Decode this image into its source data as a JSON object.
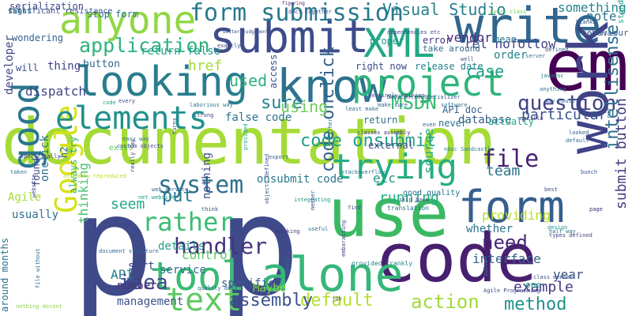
{
  "words": [
    {
      "text": "documentation",
      "color": "#a5db36"
    },
    {
      "text": "p",
      "color": "#3e4a89"
    },
    {
      "text": "p",
      "color": "#3e4a89"
    },
    {
      "text": "use",
      "color": "#3ab963"
    },
    {
      "text": "code",
      "color": "#481f70"
    },
    {
      "text": "alone",
      "color": "#35b779"
    },
    {
      "text": "em",
      "color": "#440154"
    },
    {
      "text": "know",
      "color": "#2c728e"
    },
    {
      "text": "looking",
      "color": "#287d8e"
    },
    {
      "text": "write",
      "color": "#31668e"
    },
    {
      "text": "submit",
      "color": "#3e4c8a"
    },
    {
      "text": "XML",
      "color": "#22a884"
    },
    {
      "text": "project",
      "color": "#2fb47c"
    },
    {
      "text": "anyone",
      "color": "#90d743"
    },
    {
      "text": "good",
      "color": "#2a768e"
    },
    {
      "text": "Google",
      "color": "#d5e21a"
    },
    {
      "text": "work",
      "color": "#404387"
    },
    {
      "text": "form",
      "color": "#355f8d"
    },
    {
      "text": "trying",
      "color": "#26ad81"
    },
    {
      "text": "elements",
      "color": "#21918c"
    },
    {
      "text": "tool",
      "color": "#3bbb75"
    },
    {
      "text": "text",
      "color": "#5ec962"
    },
    {
      "text": "form submission",
      "color": "#2a788e"
    },
    {
      "text": "application",
      "color": "#2db27d"
    },
    {
      "text": "question",
      "color": "#424186"
    },
    {
      "text": "code onclick",
      "color": "#34618d"
    },
    {
      "text": "code onsubmit",
      "color": "#1f9e89"
    },
    {
      "text": "default",
      "color": "#b5de2b"
    },
    {
      "text": "action",
      "color": "#a0da39"
    },
    {
      "text": "method",
      "color": "#21908d"
    },
    {
      "text": "file",
      "color": "#482173"
    },
    {
      "text": "intellisense",
      "color": "#2e6f8e"
    },
    {
      "text": "submit button",
      "color": "#443983"
    },
    {
      "text": "system",
      "color": "#2d708e"
    },
    {
      "text": "rather",
      "color": "#3dbc74"
    },
    {
      "text": "handler",
      "color": "#46337e"
    },
    {
      "text": "Visual Studio",
      "color": "#277f8e"
    },
    {
      "text": "MSDN",
      "color": "#3aba76"
    },
    {
      "text": "case",
      "color": "#1fa187"
    },
    {
      "text": "assembly",
      "color": "#3b528b"
    },
    {
      "text": "idea",
      "color": "#3f4788"
    },
    {
      "text": "sure",
      "color": "#26828e"
    },
    {
      "text": "need",
      "color": "#482878"
    },
    {
      "text": "particular",
      "color": "#3a548c"
    },
    {
      "text": "example",
      "color": "#453781"
    },
    {
      "text": "team",
      "color": "#2c738e"
    },
    {
      "text": "year",
      "color": "#3b518b"
    },
    {
      "text": "running",
      "color": "#26ad81"
    },
    {
      "text": "used",
      "color": "#2db27d"
    },
    {
      "text": "using",
      "color": "#6ccd5a"
    },
    {
      "text": "etc",
      "color": "#1f958b"
    },
    {
      "text": "seem",
      "color": "#22a785"
    },
    {
      "text": "put",
      "color": "#2a788e"
    },
    {
      "text": "control",
      "color": "#5ac864"
    },
    {
      "text": "thinking",
      "color": "#48c16e"
    },
    {
      "text": "interface",
      "color": "#33628d"
    },
    {
      "text": "providing",
      "color": "#b8de29"
    },
    {
      "text": "database",
      "color": "#355e8d"
    },
    {
      "text": "dispatch",
      "color": "#404688"
    },
    {
      "text": "something",
      "color": "#25848e"
    },
    {
      "text": "vendor",
      "color": "#472d7b"
    },
    {
      "text": "href",
      "color": "#a2da37"
    },
    {
      "text": "return false",
      "color": "#1e9c89"
    },
    {
      "text": "rel nofollow",
      "color": "#414487"
    },
    {
      "text": "note",
      "color": "#2c728e"
    },
    {
      "text": "source",
      "color": "#26ad81"
    },
    {
      "text": "whether",
      "color": "#2b748e"
    },
    {
      "text": "management",
      "color": "#3b528b"
    },
    {
      "text": "details",
      "color": "#1f9f88"
    },
    {
      "text": "sort",
      "color": "#404588"
    },
    {
      "text": "API",
      "color": "#277e8e"
    },
    {
      "text": "number",
      "color": "#46327e"
    },
    {
      "text": "service",
      "color": "#2f6c8e"
    },
    {
      "text": "Maybe",
      "color": "#8bd646"
    },
    {
      "text": "specific",
      "color": "#365c8d"
    },
    {
      "text": "Agile",
      "color": "#a8db34"
    },
    {
      "text": "usually",
      "color": "#2e6f8e"
    },
    {
      "text": "thing",
      "color": "#414487"
    },
    {
      "text": "button",
      "color": "#31688e"
    },
    {
      "text": "will",
      "color": "#3b528b"
    },
    {
      "text": "developer",
      "color": "#404588"
    },
    {
      "text": "wondering",
      "color": "#33638d"
    },
    {
      "text": "stop form",
      "color": "#2a788e"
    },
    {
      "text": "serialization",
      "color": "#3f4889"
    },
    {
      "text": "take around",
      "color": "#2f6b8e"
    },
    {
      "text": "mean",
      "color": "#2b758e"
    },
    {
      "text": "error",
      "color": "#46337e"
    },
    {
      "text": "proper",
      "color": "#1f968b"
    },
    {
      "text": "order",
      "color": "#26828e"
    },
    {
      "text": "behaviour",
      "color": "#34608d"
    },
    {
      "text": "standard",
      "color": "#1f9e89"
    },
    {
      "text": "right now",
      "color": "#3e4989"
    },
    {
      "text": "release date",
      "color": "#26828e"
    },
    {
      "text": "API doc",
      "color": "#33628d"
    },
    {
      "text": "actually",
      "color": "#22a884"
    },
    {
      "text": "access",
      "color": "#3a538b"
    },
    {
      "text": "return",
      "color": "#2c728e"
    },
    {
      "text": "false code",
      "color": "#2c718e"
    },
    {
      "text": "onsubmit code",
      "color": "#2a788e"
    },
    {
      "text": "nothing",
      "color": "#3e4a89"
    },
    {
      "text": "external",
      "color": "#3f4788"
    },
    {
      "text": "never",
      "color": "#2a778e"
    },
    {
      "text": "exist",
      "color": "#5ac864"
    },
    {
      "text": "onclick",
      "color": "#2d708e"
    },
    {
      "text": "found",
      "color": "#3e4989"
    },
    {
      "text": "always try",
      "color": "#2fb47c"
    },
    {
      "text": "one",
      "color": "#1f998a"
    },
    {
      "text": "h2",
      "color": "#2f6c8e"
    },
    {
      "text": "around months",
      "color": "#2c718e"
    },
    {
      "text": "good quality",
      "color": "#2c728e"
    },
    {
      "text": "code",
      "color": "#1fa187"
    },
    {
      "text": "DataContractSerializer",
      "color": "#38588c"
    },
    {
      "text": "translation",
      "color": "#2e6e8e"
    },
    {
      "text": "provided frankly",
      "color": "#26828e"
    },
    {
      "text": "classes assembly",
      "color": "#46307e"
    },
    {
      "text": "nbsc Sandcastle",
      "color": "#277f8e"
    },
    {
      "text": "stackoverflow",
      "color": "#2e6f8e"
    },
    {
      "text": "find",
      "color": "#3e4c8a"
    },
    {
      "text": "working",
      "color": "#453581"
    },
    {
      "text": "skip back",
      "color": "#3f4889"
    },
    {
      "text": "useful",
      "color": "#2d718e"
    },
    {
      "text": "integrating",
      "color": "#20938c"
    },
    {
      "text": "think",
      "color": "#3b528b"
    },
    {
      "text": "net website",
      "color": "#1e9b8a"
    },
    {
      "text": "really say",
      "color": "#433e85"
    },
    {
      "text": "easy way",
      "color": "#2b758e"
    },
    {
      "text": "custom objects",
      "color": "#3e4a89"
    },
    {
      "text": "export",
      "color": "#355e8d"
    },
    {
      "text": "strong",
      "color": "#3f4788"
    },
    {
      "text": "anything",
      "color": "#2f6c8e"
    },
    {
      "text": "way house",
      "color": "#2f6b8e"
    },
    {
      "text": "dependencies etc",
      "color": "#3e4989"
    },
    {
      "text": "avery class",
      "color": "#6ccd5a"
    },
    {
      "text": "better judgement",
      "color": "#3b528b"
    },
    {
      "text": "docs together",
      "color": "#39568c"
    },
    {
      "text": "figuring",
      "color": "#482475"
    },
    {
      "text": "blanks",
      "color": "#3b518b"
    },
    {
      "text": "server",
      "color": "#2c718e"
    },
    {
      "text": "well",
      "color": "#3e4989"
    },
    {
      "text": "javadoc",
      "color": "#25838e"
    },
    {
      "text": "mozilla",
      "color": "#453882"
    },
    {
      "text": "half way",
      "color": "#2e6e8e"
    },
    {
      "text": "design",
      "color": "#1f9a8a"
    },
    {
      "text": "types defined",
      "color": "#424186"
    },
    {
      "text": "class member",
      "color": "#3b528b"
    },
    {
      "text": "quality docs",
      "color": "#2c728e"
    },
    {
      "text": "nothing decent",
      "color": "#8bd646"
    },
    {
      "text": "Agile Programming",
      "color": "#3e4a89"
    },
    {
      "text": "embarassing",
      "color": "#414487"
    },
    {
      "text": "guide",
      "color": "#2a788e"
    },
    {
      "text": "document structure",
      "color": "#31688e"
    },
    {
      "text": "objects defined",
      "color": "#3a538b"
    },
    {
      "text": "supply",
      "color": "#2c718e"
    },
    {
      "text": "job",
      "color": "#3f4788"
    },
    {
      "text": "even",
      "color": "#355f8d"
    },
    {
      "text": "taken",
      "color": "#2a778e"
    },
    {
      "text": "bunch",
      "color": "#3b528b"
    },
    {
      "text": "page",
      "color": "#472c7a"
    },
    {
      "text": "best",
      "color": "#3e4989"
    },
    {
      "text": "run",
      "color": "#2e6f8e"
    },
    {
      "text": "looked",
      "color": "#39568c"
    },
    {
      "text": "laborious way",
      "color": "#2a768e"
    },
    {
      "text": "exactly",
      "color": "#3e4a89"
    },
    {
      "text": "make sure",
      "color": "#33638d"
    },
    {
      "text": "seemingly nothing",
      "color": "#3b528b"
    },
    {
      "text": "least make",
      "color": "#2d718e"
    },
    {
      "text": "member",
      "color": "#38588c"
    },
    {
      "text": "provided",
      "color": "#1f9e89"
    },
    {
      "text": "turns",
      "color": "#3e4989"
    },
    {
      "text": "web service",
      "color": "#33638d"
    },
    {
      "text": "file without",
      "color": "#2f6b8e"
    },
    {
      "text": "software",
      "color": "#2c718e"
    },
    {
      "text": "assembly reproduced",
      "color": "#b8de29"
    },
    {
      "text": "specifically",
      "color": "#433e85"
    },
    {
      "text": "website",
      "color": "#3f4788"
    },
    {
      "text": "default",
      "color": "#2f6c8e"
    },
    {
      "text": "defined",
      "color": "#355e8d"
    },
    {
      "text": "reflect",
      "color": "#38588c"
    },
    {
      "text": "either",
      "color": "#2c718e"
    },
    {
      "text": "every",
      "color": "#3b528b"
    },
    {
      "text": "ton",
      "color": "#2f6b8e"
    },
    {
      "text": "fill",
      "color": "#3e4989"
    },
    {
      "text": "significant resistance",
      "color": "#3b528b"
    },
    {
      "text": "tools",
      "color": "#2a788e"
    }
  ]
}
